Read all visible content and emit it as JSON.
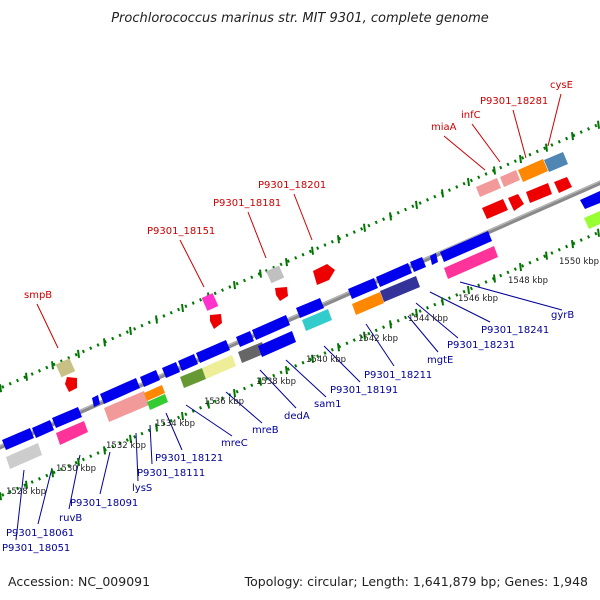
{
  "title": "Prochlorococcus marinus str. MIT 9301, complete genome",
  "footer": {
    "accession": "Accession: NC_009091",
    "summary": "Topology: circular; Length: 1,641,879 bp; Genes: 1,948"
  },
  "colors": {
    "forward_label": "#cc0000",
    "reverse_label": "#000099",
    "backbone": "#8a8a8a",
    "ruler": "#007700",
    "leader_forward": "#cc0000",
    "leader_reverse": "#000099"
  },
  "kbp_ticks": [
    {
      "label": "1528 kbp"
    },
    {
      "label": "1530 kbp"
    },
    {
      "label": "1532 kbp"
    },
    {
      "label": "1534 kbp"
    },
    {
      "label": "1536 kbp"
    },
    {
      "label": "1538 kbp"
    },
    {
      "label": "1540 kbp"
    },
    {
      "label": "1542 kbp"
    },
    {
      "label": "1544 kbp"
    },
    {
      "label": "1546 kbp"
    },
    {
      "label": "1548 kbp"
    },
    {
      "label": "1550 kbp"
    }
  ],
  "forward_labels": [
    {
      "text": "smpB"
    },
    {
      "text": "P9301_18151"
    },
    {
      "text": "P9301_18181"
    },
    {
      "text": "P9301_18201"
    },
    {
      "text": "miaA"
    },
    {
      "text": "infC"
    },
    {
      "text": "P9301_18281"
    },
    {
      "text": "cysE"
    }
  ],
  "reverse_labels": [
    {
      "text": "P9301_18051"
    },
    {
      "text": "P9301_18061"
    },
    {
      "text": "ruvB"
    },
    {
      "text": "P9301_18091"
    },
    {
      "text": "lysS"
    },
    {
      "text": "P9301_18111"
    },
    {
      "text": "P9301_18121"
    },
    {
      "text": "mreC"
    },
    {
      "text": "mreB"
    },
    {
      "text": "dedA"
    },
    {
      "text": "sam1"
    },
    {
      "text": "P9301_18191"
    },
    {
      "text": "P9301_18211"
    },
    {
      "text": "mgtE"
    },
    {
      "text": "P9301_18231"
    },
    {
      "text": "P9301_18241"
    },
    {
      "text": "gyrB"
    }
  ]
}
